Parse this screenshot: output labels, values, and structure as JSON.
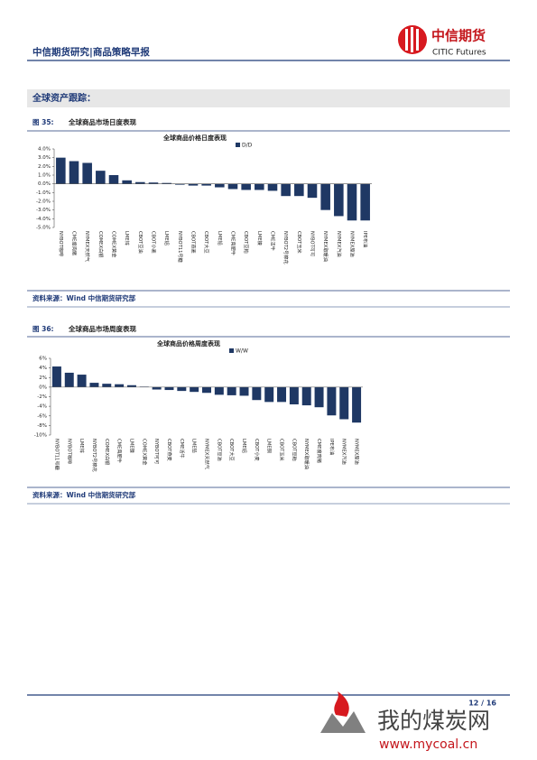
{
  "header": {
    "title": "中信期货研究|商品策略早报",
    "logo_cn": "中信期货",
    "logo_en": "CITIC Futures"
  },
  "section": "全球资产跟踪：",
  "figures": [
    {
      "number": "图 35:",
      "caption": "全球商品市场日度表现",
      "source": "资料来源：Wind  中信期货研究部",
      "chart": {
        "type": "bar",
        "title": "全球商品价格日度表现",
        "color": "#1f3864",
        "series_name": "D/D",
        "categories": [
          "NYBOT咖啡",
          "CME瘦肉猪",
          "NYMEX天然气",
          "COMEX白银",
          "COMEX黄金",
          "LME锌",
          "CBOT豆油",
          "CBOT小麦",
          "LME铝",
          "NYBOT11号糖",
          "CBOT燕麦",
          "CBOT大豆",
          "LME铅",
          "CME育肥牛",
          "CBOT豆粕",
          "LME镍",
          "CME活牛",
          "NYBOT2号棉花",
          "CBOT玉米",
          "NYBOT可可",
          "NYMEX取暖油",
          "NYMEX汽油",
          "NYMEX原油",
          "IPE布油"
        ],
        "values": [
          3.0,
          2.6,
          2.4,
          1.5,
          1.0,
          0.4,
          0.2,
          0.15,
          0.1,
          -0.1,
          -0.2,
          -0.2,
          -0.4,
          -0.6,
          -0.7,
          -0.7,
          -0.8,
          -1.4,
          -1.4,
          -1.6,
          -3.0,
          -3.7,
          -4.2,
          -4.2
        ],
        "ylim": [
          -5,
          4
        ],
        "yticks": [
          {
            "value": 4,
            "label": "4.0%"
          },
          {
            "value": 3,
            "label": "3.0%"
          },
          {
            "value": 2,
            "label": "2.0%"
          },
          {
            "value": 1,
            "label": "1.0%"
          },
          {
            "value": 0,
            "label": "0.0%"
          },
          {
            "value": -1,
            "label": "-1.0%"
          },
          {
            "value": -2,
            "label": "-2.0%"
          },
          {
            "value": -3,
            "label": "-3.0%"
          },
          {
            "value": -4,
            "label": "-4.0%"
          },
          {
            "value": -5,
            "label": "-5.0%"
          }
        ]
      }
    },
    {
      "number": "图 36:",
      "caption": "全球商品市场周度表现",
      "source": "资料来源：Wind  中信期货研究部",
      "chart": {
        "type": "bar",
        "title": "全球商品价格周度表现",
        "color": "#1f3864",
        "series_name": "W/W",
        "categories": [
          "NYBOT11号糖",
          "NYBOT咖啡",
          "LME锌",
          "NYBOT2号棉花",
          "COMEX白银",
          "CME育肥牛",
          "LME镍",
          "COMEX黄金",
          "NYBOT可可",
          "CBOT燕麦",
          "CME活牛",
          "LME铅",
          "NYMEX天然气",
          "CBOT豆油",
          "CBOT大豆",
          "LME铝",
          "CBOT小麦",
          "LME铜",
          "CBOT玉米",
          "CBOT豆粕",
          "NYMEX取暖油",
          "CME瘦肉猪",
          "IPE布油",
          "NYMEX汽油",
          "NYMEX原油"
        ],
        "values": [
          4.3,
          3.0,
          2.6,
          0.9,
          0.7,
          0.6,
          0.4,
          0.1,
          -0.5,
          -0.6,
          -0.8,
          -1.0,
          -1.2,
          -1.6,
          -1.7,
          -1.8,
          -2.7,
          -3.1,
          -3.1,
          -3.6,
          -3.8,
          -4.2,
          -5.9,
          -6.7,
          -7.4
        ],
        "ylim": [
          -10,
          6
        ],
        "yticks": [
          {
            "value": 6,
            "label": "6%"
          },
          {
            "value": 4,
            "label": "4%"
          },
          {
            "value": 2,
            "label": "2%"
          },
          {
            "value": 0,
            "label": "0%"
          },
          {
            "value": -2,
            "label": "-2%"
          },
          {
            "value": -4,
            "label": "-4%"
          },
          {
            "value": -6,
            "label": "-6%"
          },
          {
            "value": -8,
            "label": "-8%"
          },
          {
            "value": -10,
            "label": "-10%"
          }
        ]
      }
    }
  ],
  "footer": {
    "page": "12 / 16"
  },
  "watermark": {
    "name": "我的煤炭网",
    "url": "www.mycoal.cn"
  }
}
